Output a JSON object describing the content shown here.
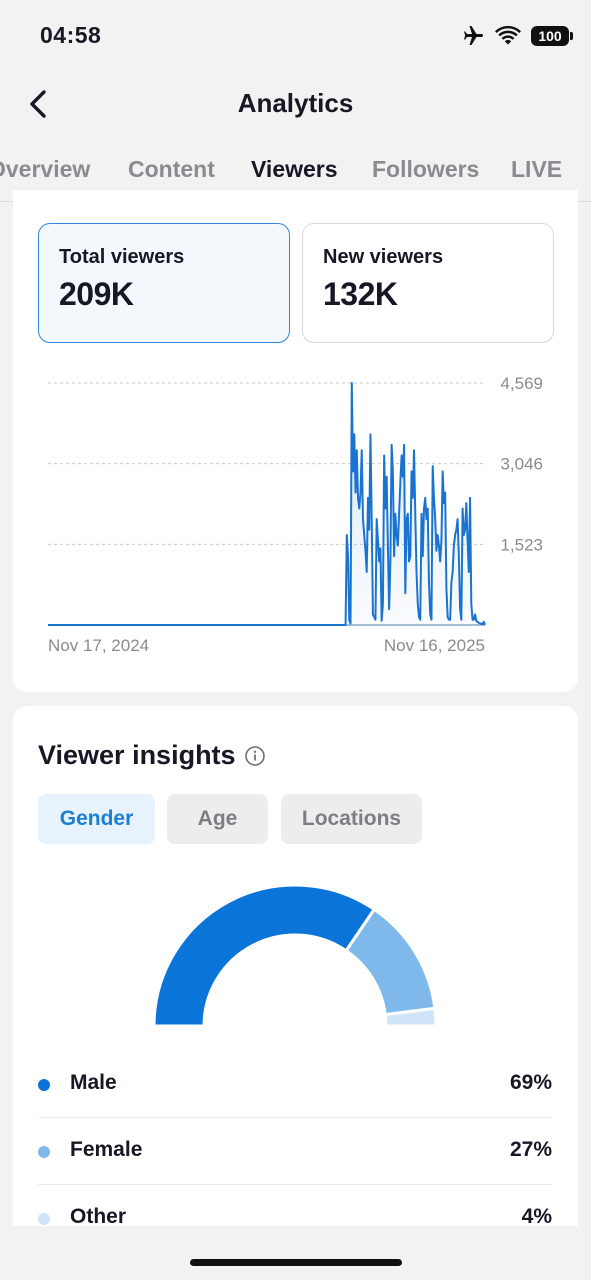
{
  "status_bar": {
    "time": "04:58",
    "battery": "100",
    "icons": [
      "airplane-icon",
      "wifi-icon",
      "battery-icon"
    ]
  },
  "header": {
    "title": "Analytics"
  },
  "tabs": [
    {
      "label": "Overview",
      "active": false
    },
    {
      "label": "Content",
      "active": false
    },
    {
      "label": "Viewers",
      "active": true
    },
    {
      "label": "Followers",
      "active": false
    },
    {
      "label": "LIVE",
      "active": false
    }
  ],
  "metrics": [
    {
      "label": "Total viewers",
      "value": "209K",
      "selected": true
    },
    {
      "label": "New viewers",
      "value": "132K",
      "selected": false
    }
  ],
  "chart_data": {
    "type": "area",
    "x_start_label": "Nov 17, 2024",
    "x_end_label": "Nov 16, 2025",
    "y_ticks": [
      1523,
      3046,
      4569
    ],
    "y_tick_labels": [
      "1,523",
      "3,046",
      "4,569"
    ],
    "ylim": [
      0,
      4569
    ],
    "grid": true,
    "line_color": "#1b73d0",
    "values": [
      0,
      0,
      0,
      0,
      0,
      0,
      0,
      0,
      0,
      0,
      0,
      0,
      0,
      0,
      0,
      0,
      0,
      0,
      0,
      0,
      0,
      0,
      0,
      0,
      0,
      0,
      0,
      0,
      0,
      0,
      0,
      0,
      0,
      0,
      0,
      0,
      0,
      0,
      0,
      0,
      0,
      0,
      0,
      0,
      0,
      0,
      0,
      0,
      0,
      0,
      0,
      0,
      0,
      0,
      0,
      0,
      0,
      0,
      0,
      0,
      0,
      0,
      0,
      0,
      0,
      0,
      0,
      0,
      0,
      0,
      0,
      0,
      0,
      0,
      0,
      0,
      0,
      0,
      0,
      0,
      0,
      0,
      0,
      0,
      0,
      0,
      0,
      0,
      0,
      0,
      0,
      0,
      0,
      0,
      0,
      0,
      0,
      0,
      0,
      0,
      0,
      0,
      0,
      0,
      0,
      0,
      0,
      0,
      0,
      0,
      0,
      0,
      0,
      0,
      0,
      0,
      0,
      0,
      0,
      0,
      0,
      0,
      0,
      0,
      0,
      0,
      0,
      0,
      0,
      0,
      0,
      0,
      0,
      0,
      0,
      0,
      0,
      0,
      0,
      0,
      0,
      0,
      0,
      0,
      0,
      0,
      0,
      0,
      0,
      0,
      0,
      0,
      0,
      0,
      0,
      0,
      0,
      0,
      0,
      0,
      0,
      0,
      0,
      0,
      0,
      0,
      0,
      0,
      0,
      0,
      0,
      0,
      0,
      0,
      0,
      0,
      0,
      0,
      0,
      0,
      0,
      0,
      0,
      0,
      0,
      0,
      0,
      0,
      0,
      0,
      0,
      0,
      0,
      0,
      0,
      0,
      0,
      0,
      0,
      0,
      0,
      0,
      0,
      0,
      0,
      0,
      0,
      0,
      0,
      0,
      0,
      0,
      0,
      0,
      0,
      0,
      0,
      0,
      0,
      0,
      0,
      0,
      0,
      0,
      0,
      0,
      0,
      0,
      0,
      0,
      0,
      0,
      0,
      0,
      0,
      0,
      0,
      0,
      0,
      0,
      1700,
      1300,
      80,
      30,
      4569,
      2900,
      3600,
      2500,
      3300,
      2400,
      2200,
      2500,
      3300,
      2000,
      1700,
      1400,
      1000,
      2400,
      1800,
      3600,
      2000,
      200,
      150,
      100,
      2000,
      1600,
      1200,
      1450,
      80,
      400,
      3200,
      2200,
      2800,
      1500,
      300,
      1200,
      3400,
      2900,
      1300,
      2100,
      1700,
      1500,
      2100,
      2700,
      3200,
      2800,
      3400,
      600,
      2000,
      2100,
      1200,
      1300,
      2900,
      2400,
      3300,
      2100,
      1000,
      400,
      150,
      100,
      2100,
      1300,
      2200,
      2400,
      2000,
      2200,
      800,
      200,
      100,
      3000,
      2400,
      2000,
      1400,
      1700,
      1500,
      1200,
      1600,
      2900,
      2300,
      2500,
      700,
      150,
      100,
      100,
      800,
      1000,
      1500,
      1700,
      1800,
      2000,
      1300,
      300,
      100,
      2200,
      1700,
      1800,
      2300,
      1600,
      1000,
      2400,
      400,
      100,
      100,
      200,
      80,
      60,
      40,
      30,
      20,
      20,
      60,
      0
    ]
  },
  "insights": {
    "title": "Viewer insights",
    "chips": [
      {
        "label": "Gender",
        "active": true
      },
      {
        "label": "Age",
        "active": false
      },
      {
        "label": "Locations",
        "active": false
      }
    ],
    "gender": [
      {
        "label": "Male",
        "value": "69%",
        "percent": 69,
        "color": "#0b74d8"
      },
      {
        "label": "Female",
        "value": "27%",
        "percent": 27,
        "color": "#7fb9ec"
      },
      {
        "label": "Other",
        "value": "4%",
        "percent": 4,
        "color": "#cfe4f7"
      }
    ]
  }
}
